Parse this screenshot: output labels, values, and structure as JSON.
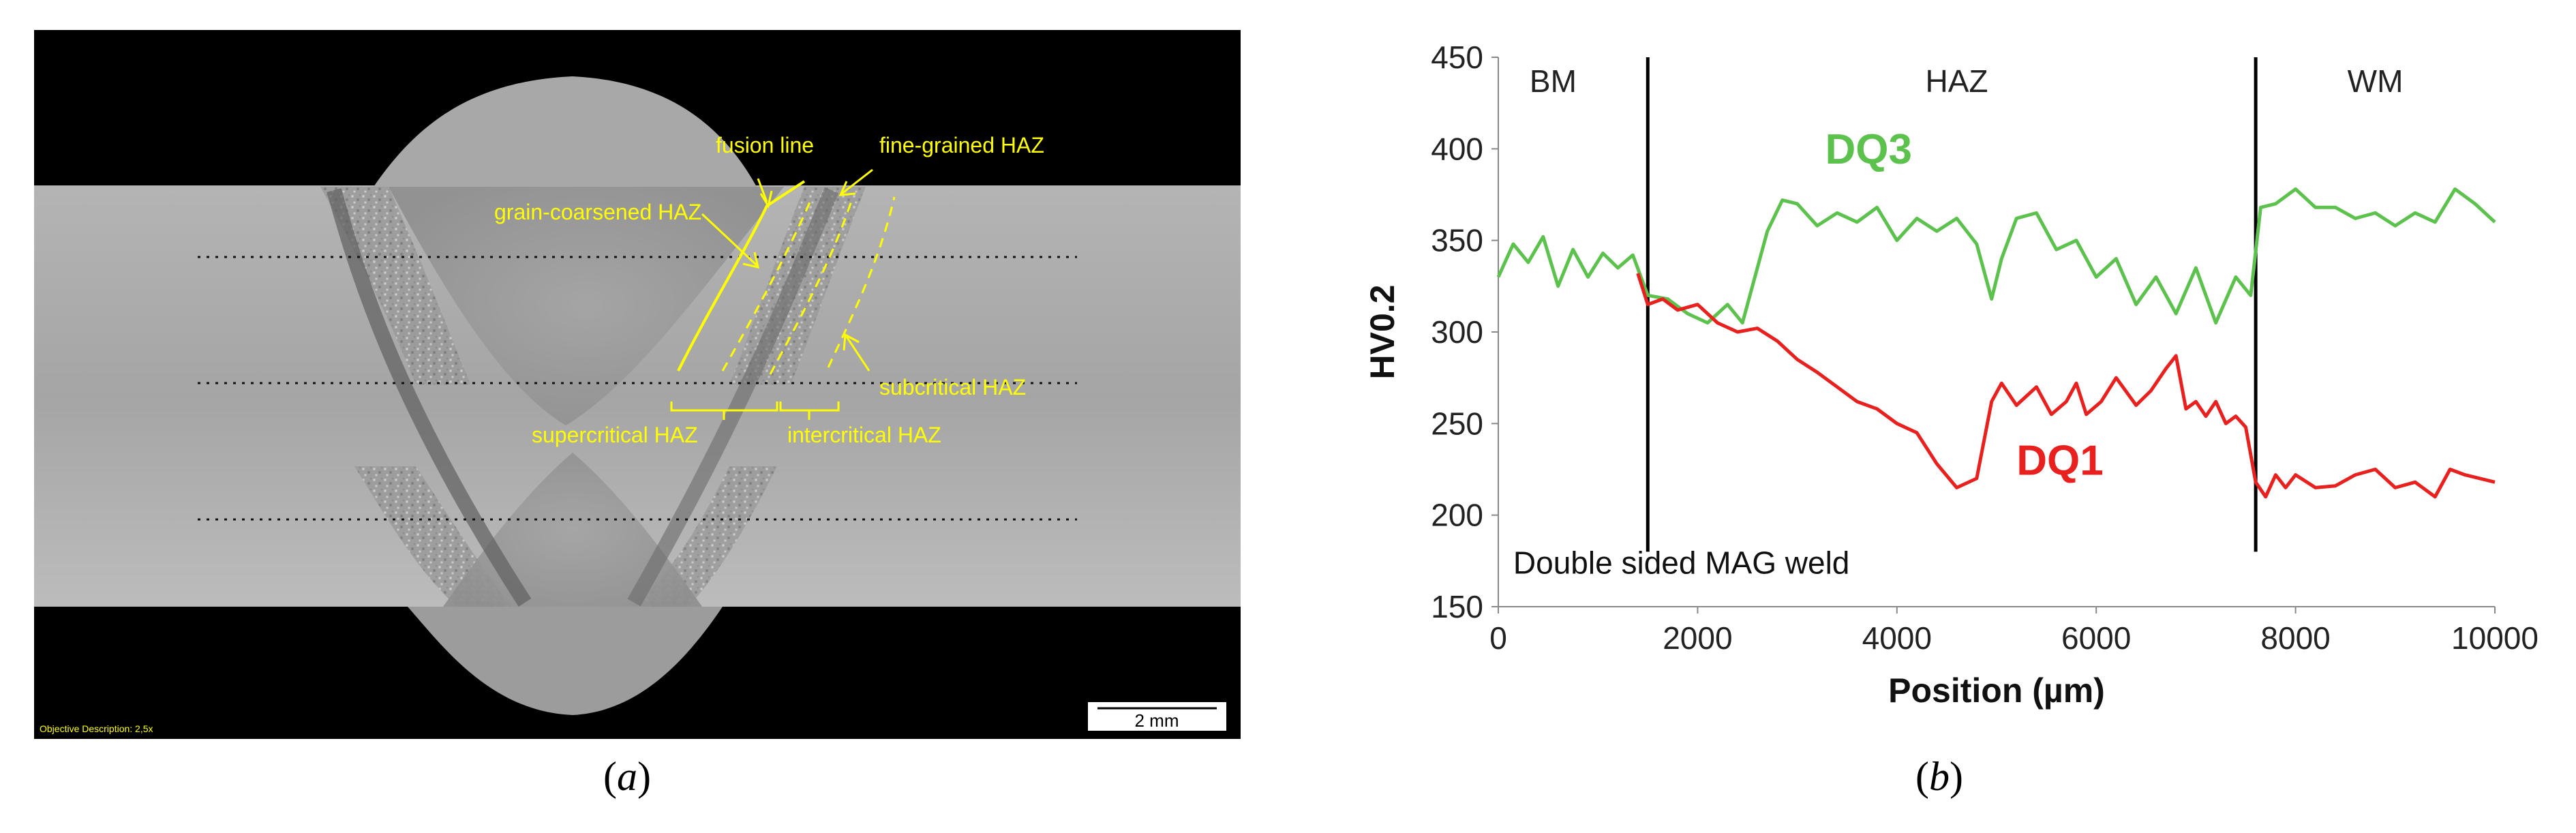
{
  "panel_a": {
    "labels": {
      "fusion_line": "fusion line",
      "fine_grained": "fine-grained HAZ",
      "grain_coarsened": "grain-coarsened  HAZ",
      "subcritical": "subcritical HAZ",
      "supercritical": "supercritical HAZ",
      "intercritical": "intercritical HAZ",
      "objective": "Objective Description:  2,5x",
      "scale": "2 mm"
    },
    "colors": {
      "annotation": "#ffff00",
      "background": "#000000",
      "plate": "#9c9c9c"
    }
  },
  "captions": {
    "a_letter": "a",
    "b_letter": "b"
  },
  "chart_data": {
    "type": "line",
    "xlabel": "Position (µm)",
    "ylabel": "HV0.2",
    "xlim": [
      0,
      10000
    ],
    "ylim": [
      150,
      450
    ],
    "xticks": [
      0,
      2000,
      4000,
      6000,
      8000,
      10000
    ],
    "yticks": [
      150,
      200,
      250,
      300,
      350,
      400,
      450
    ],
    "grid": false,
    "zone_lines": [
      1500,
      7600
    ],
    "zone_labels": [
      {
        "text": "BM",
        "x": 550,
        "y": 431
      },
      {
        "text": "HAZ",
        "x": 4600,
        "y": 431
      },
      {
        "text": "WM",
        "x": 8800,
        "y": 431
      }
    ],
    "annotation": {
      "text": "Double sided MAG weld",
      "x": 150,
      "y": 168
    },
    "series": [
      {
        "name": "DQ3",
        "color": "#5cc14d",
        "label_pos": {
          "x": 3280,
          "y": 392
        },
        "x": [
          0,
          150,
          300,
          450,
          600,
          750,
          900,
          1050,
          1200,
          1350,
          1500,
          1700,
          1900,
          2100,
          2300,
          2450,
          2550,
          2700,
          2850,
          3000,
          3200,
          3400,
          3600,
          3800,
          4000,
          4200,
          4400,
          4600,
          4800,
          4950,
          5050,
          5200,
          5400,
          5600,
          5800,
          6000,
          6200,
          6400,
          6600,
          6800,
          7000,
          7200,
          7400,
          7550,
          7650,
          7800,
          8000,
          8200,
          8400,
          8600,
          8800,
          9000,
          9200,
          9400,
          9600,
          9800,
          10000
        ],
        "values": [
          330,
          348,
          338,
          352,
          325,
          345,
          330,
          343,
          335,
          342,
          320,
          318,
          310,
          305,
          315,
          305,
          325,
          355,
          372,
          370,
          358,
          365,
          360,
          368,
          350,
          362,
          355,
          362,
          348,
          318,
          340,
          362,
          365,
          345,
          350,
          330,
          340,
          315,
          330,
          310,
          335,
          305,
          330,
          320,
          368,
          370,
          378,
          368,
          368,
          362,
          365,
          358,
          365,
          360,
          378,
          370,
          360
        ]
      },
      {
        "name": "DQ1",
        "color": "#e8201e",
        "label_pos": {
          "x": 5200,
          "y": 222
        },
        "x": [
          1400,
          1500,
          1650,
          1800,
          2000,
          2200,
          2400,
          2600,
          2800,
          3000,
          3200,
          3400,
          3600,
          3800,
          4000,
          4200,
          4400,
          4600,
          4800,
          4950,
          5050,
          5200,
          5400,
          5550,
          5700,
          5800,
          5900,
          6050,
          6200,
          6400,
          6550,
          6700,
          6800,
          6900,
          7000,
          7100,
          7200,
          7300,
          7400,
          7500,
          7600,
          7700,
          7800,
          7900,
          8000,
          8200,
          8400,
          8600,
          8800,
          9000,
          9200,
          9400,
          9550,
          9700,
          9850,
          10000
        ],
        "values": [
          332,
          315,
          318,
          312,
          315,
          305,
          300,
          302,
          295,
          285,
          278,
          270,
          262,
          258,
          250,
          245,
          228,
          215,
          220,
          262,
          272,
          260,
          270,
          255,
          262,
          272,
          255,
          262,
          275,
          260,
          268,
          280,
          287,
          258,
          262,
          254,
          262,
          250,
          254,
          248,
          218,
          210,
          222,
          215,
          222,
          215,
          216,
          222,
          225,
          215,
          218,
          210,
          225,
          222,
          220,
          218
        ]
      }
    ]
  }
}
